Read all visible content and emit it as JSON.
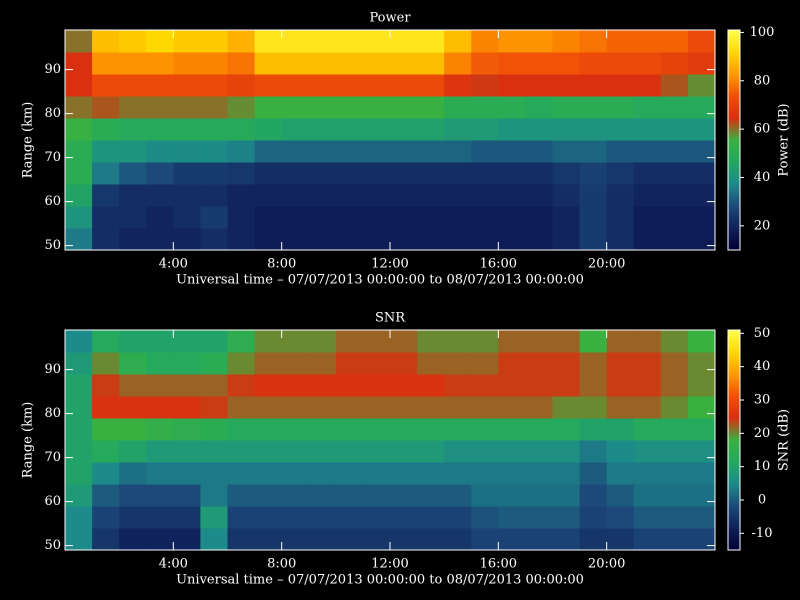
{
  "chart_data": [
    {
      "type": "heatmap",
      "title": "Power",
      "xlabel": "Universal time – 07/07/2013 00:00:00 to 08/07/2013 00:00:00",
      "ylabel": "Range (km)",
      "colorbar_label": "Power (dB)",
      "xlim": [
        0,
        24
      ],
      "xticks": [
        {
          "value": 4,
          "label": "4:00"
        },
        {
          "value": 8,
          "label": "8:00"
        },
        {
          "value": 12,
          "label": "12:00"
        },
        {
          "value": 16,
          "label": "16:00"
        },
        {
          "value": 20,
          "label": "20:00"
        }
      ],
      "ylim": [
        49,
        99
      ],
      "yticks": [
        50,
        60,
        70,
        80,
        90
      ],
      "zlim": [
        10,
        101
      ],
      "zticks": [
        20,
        40,
        60,
        80,
        100
      ],
      "colorscale": [
        "#000033",
        "#10205a",
        "#1c4a7a",
        "#1d8a8a",
        "#22a860",
        "#3ab040",
        "#d83010",
        "#f05008",
        "#ff9a00",
        "#ffd800",
        "#ffff50"
      ],
      "xbins": [
        0,
        1,
        2,
        3,
        4,
        5,
        6,
        7,
        8,
        9,
        10,
        11,
        12,
        13,
        14,
        15,
        16,
        17,
        18,
        19,
        20,
        21,
        22,
        23,
        24
      ],
      "ybins": [
        49,
        54,
        59,
        64,
        69,
        74,
        79,
        84,
        89,
        94,
        99
      ],
      "values": [
        [
          35,
          22,
          20,
          20,
          20,
          22,
          20,
          18,
          18,
          18,
          18,
          18,
          18,
          18,
          18,
          18,
          18,
          18,
          20,
          25,
          22,
          18,
          18,
          18
        ],
        [
          40,
          22,
          22,
          20,
          22,
          25,
          20,
          18,
          18,
          18,
          18,
          18,
          18,
          18,
          18,
          18,
          18,
          18,
          20,
          25,
          22,
          18,
          18,
          18
        ],
        [
          45,
          24,
          22,
          22,
          22,
          22,
          20,
          20,
          20,
          20,
          20,
          20,
          20,
          20,
          20,
          20,
          20,
          20,
          22,
          25,
          22,
          20,
          20,
          20
        ],
        [
          50,
          35,
          30,
          28,
          25,
          25,
          24,
          22,
          22,
          22,
          22,
          22,
          22,
          22,
          22,
          22,
          22,
          22,
          24,
          26,
          24,
          22,
          22,
          22
        ],
        [
          50,
          40,
          40,
          38,
          38,
          38,
          36,
          32,
          32,
          32,
          32,
          32,
          32,
          32,
          32,
          30,
          30,
          30,
          32,
          32,
          30,
          30,
          30,
          30
        ],
        [
          55,
          50,
          48,
          48,
          48,
          48,
          48,
          46,
          44,
          44,
          44,
          44,
          44,
          44,
          42,
          42,
          40,
          40,
          40,
          40,
          40,
          40,
          40,
          40
        ],
        [
          60,
          62,
          60,
          60,
          60,
          60,
          58,
          55,
          55,
          55,
          55,
          55,
          55,
          55,
          50,
          50,
          50,
          48,
          50,
          50,
          50,
          48,
          48,
          48
        ],
        [
          65,
          72,
          72,
          72,
          72,
          72,
          70,
          72,
          72,
          72,
          72,
          72,
          72,
          72,
          66,
          64,
          65,
          65,
          65,
          65,
          65,
          65,
          62,
          58
        ],
        [
          65,
          82,
          82,
          82,
          80,
          80,
          78,
          88,
          88,
          88,
          88,
          88,
          88,
          88,
          80,
          75,
          74,
          74,
          74,
          72,
          72,
          72,
          70,
          68
        ],
        [
          60,
          88,
          90,
          92,
          90,
          90,
          86,
          95,
          95,
          95,
          95,
          95,
          95,
          95,
          88,
          80,
          82,
          82,
          80,
          78,
          76,
          76,
          76,
          72
        ]
      ]
    },
    {
      "type": "heatmap",
      "title": "SNR",
      "xlabel": "Universal time – 07/07/2013 00:00:00 to 08/07/2013 00:00:00",
      "ylabel": "Range (km)",
      "colorbar_label": "SNR (dB)",
      "xlim": [
        0,
        24
      ],
      "xticks": [
        {
          "value": 4,
          "label": "4:00"
        },
        {
          "value": 8,
          "label": "8:00"
        },
        {
          "value": 12,
          "label": "12:00"
        },
        {
          "value": 16,
          "label": "16:00"
        },
        {
          "value": 20,
          "label": "20:00"
        }
      ],
      "ylim": [
        49,
        99
      ],
      "yticks": [
        50,
        60,
        70,
        80,
        90
      ],
      "zlim": [
        -15,
        51
      ],
      "zticks": [
        -10,
        0,
        10,
        20,
        30,
        40,
        50
      ],
      "colorscale": [
        "#000033",
        "#10205a",
        "#1c4a7a",
        "#1d8a8a",
        "#22a860",
        "#3ab040",
        "#d83010",
        "#f05008",
        "#ff9a00",
        "#ffd800",
        "#ffff50"
      ],
      "xbins": [
        0,
        1,
        2,
        3,
        4,
        5,
        6,
        7,
        8,
        9,
        10,
        11,
        12,
        13,
        14,
        15,
        16,
        17,
        18,
        19,
        20,
        21,
        22,
        23,
        24
      ],
      "ybins": [
        49,
        54,
        59,
        64,
        69,
        74,
        79,
        84,
        89,
        94,
        99
      ],
      "values": [
        [
          5,
          -5,
          -8,
          -8,
          -8,
          5,
          -5,
          -5,
          -5,
          -5,
          -5,
          -5,
          -5,
          -5,
          -5,
          -3,
          -3,
          -3,
          -3,
          -5,
          -5,
          -3,
          -3,
          -3
        ],
        [
          5,
          -3,
          -5,
          -5,
          -5,
          8,
          -3,
          -3,
          -3,
          -3,
          -3,
          -3,
          -3,
          -3,
          -3,
          -1,
          0,
          0,
          0,
          -3,
          -2,
          0,
          0,
          0
        ],
        [
          8,
          0,
          -2,
          -2,
          -2,
          3,
          0,
          0,
          0,
          0,
          0,
          0,
          0,
          0,
          0,
          2,
          2,
          2,
          2,
          -2,
          0,
          2,
          2,
          2
        ],
        [
          10,
          5,
          2,
          3,
          3,
          3,
          3,
          3,
          3,
          3,
          3,
          3,
          3,
          3,
          3,
          3,
          3,
          3,
          3,
          0,
          3,
          3,
          3,
          3
        ],
        [
          10,
          12,
          10,
          8,
          8,
          8,
          8,
          8,
          8,
          8,
          8,
          8,
          8,
          8,
          6,
          6,
          6,
          6,
          6,
          3,
          5,
          6,
          6,
          6
        ],
        [
          10,
          18,
          18,
          16,
          15,
          14,
          12,
          12,
          12,
          12,
          12,
          12,
          12,
          12,
          12,
          12,
          12,
          12,
          12,
          10,
          10,
          12,
          12,
          12
        ],
        [
          10,
          25,
          25,
          25,
          25,
          24,
          22,
          22,
          22,
          22,
          22,
          22,
          22,
          22,
          22,
          22,
          22,
          22,
          20,
          20,
          22,
          22,
          20,
          18
        ],
        [
          10,
          24,
          22,
          22,
          22,
          22,
          24,
          25,
          25,
          25,
          25,
          25,
          25,
          25,
          24,
          24,
          24,
          24,
          24,
          22,
          24,
          24,
          22,
          20
        ],
        [
          8,
          20,
          15,
          12,
          12,
          14,
          20,
          22,
          22,
          22,
          24,
          24,
          24,
          22,
          22,
          22,
          24,
          24,
          24,
          22,
          24,
          24,
          22,
          20
        ],
        [
          5,
          12,
          10,
          10,
          10,
          10,
          15,
          20,
          20,
          20,
          22,
          22,
          22,
          20,
          20,
          20,
          22,
          22,
          22,
          18,
          22,
          22,
          20,
          18
        ]
      ]
    }
  ]
}
